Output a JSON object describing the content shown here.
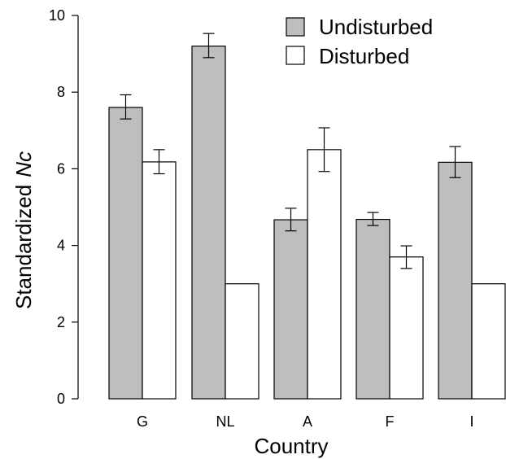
{
  "chart_data": {
    "type": "bar",
    "categories": [
      "G",
      "NL",
      "A",
      "F",
      "I"
    ],
    "series": [
      {
        "name": "Undisturbed",
        "color": "#bebebe",
        "values": [
          7.6,
          9.2,
          4.67,
          4.68,
          6.17
        ],
        "error_low": [
          7.3,
          8.9,
          4.38,
          4.52,
          5.77
        ],
        "error_high": [
          7.93,
          9.53,
          4.97,
          4.86,
          6.58
        ]
      },
      {
        "name": "Disturbed",
        "color": "#ffffff",
        "values": [
          6.18,
          3.0,
          6.5,
          3.7,
          3.0
        ],
        "error_low": [
          5.87,
          null,
          5.93,
          3.4,
          null
        ],
        "error_high": [
          6.5,
          null,
          7.07,
          3.99,
          null
        ]
      }
    ],
    "ylim": [
      0,
      10
    ],
    "yticks": [
      "0",
      "2",
      "4",
      "6",
      "8",
      "10"
    ],
    "xlabel": "Country",
    "ylabel_prefix": "Standardized",
    "ylabel_italic": "Nc",
    "legend_position": "top-right",
    "grid": false
  }
}
